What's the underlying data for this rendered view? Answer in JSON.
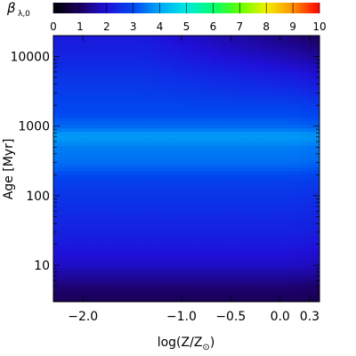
{
  "chart_data": {
    "type": "heatmap",
    "colorbar": {
      "label_symbol": "β",
      "label_subscript": "λ,0",
      "range": [
        0,
        10
      ],
      "tick_labels": [
        "0",
        "1",
        "2",
        "3",
        "4",
        "5",
        "6",
        "7",
        "8",
        "9",
        "10"
      ],
      "colormap_stops": [
        "#000000",
        "#1c0060",
        "#1f10d8",
        "#0048f0",
        "#00a8f8",
        "#00e8e0",
        "#00ff70",
        "#60ff00",
        "#f0f000",
        "#ff9000",
        "#ff0000"
      ]
    },
    "x_axis": {
      "label_prefix": "log(Z/Z",
      "label_subscript": "⊙",
      "label_suffix": ")",
      "range": [
        -2.3,
        0.4
      ],
      "ticks": [
        {
          "value": -2.0,
          "label": "−2.0"
        },
        {
          "value": -1.0,
          "label": "−1.0"
        },
        {
          "value": -0.5,
          "label": "−0.5"
        },
        {
          "value": 0.0,
          "label": "0.0"
        },
        {
          "value": 0.3,
          "label": "0.3"
        }
      ]
    },
    "y_axis": {
      "label": "Age [Myr]",
      "scale": "log",
      "range": [
        3,
        20000
      ],
      "ticks": [
        {
          "value": 10,
          "label": "10"
        },
        {
          "value": 100,
          "label": "100"
        },
        {
          "value": 1000,
          "label": "1000"
        },
        {
          "value": 10000,
          "label": "10000"
        }
      ]
    },
    "profile_age_myr": [
      3,
      4,
      5,
      6,
      8,
      10,
      15,
      20,
      30,
      50,
      70,
      100,
      150,
      200,
      300,
      400,
      500,
      600,
      700,
      800,
      900,
      1000,
      1200,
      1500,
      2000,
      3000,
      5000,
      8000,
      12000,
      20000
    ],
    "profile_beta": [
      0.9,
      1.05,
      1.15,
      1.35,
      1.6,
      1.85,
      2.0,
      2.15,
      2.3,
      2.45,
      2.55,
      2.65,
      2.8,
      3.0,
      3.4,
      3.5,
      3.55,
      3.75,
      3.85,
      3.8,
      3.55,
      3.35,
      3.2,
      3.0,
      2.95,
      2.8,
      2.65,
      2.45,
      2.3,
      2.15
    ],
    "metallicity_trend": "beta decreases toward high log(Z/Z⊙) at old ages (>2000 Myr)"
  }
}
